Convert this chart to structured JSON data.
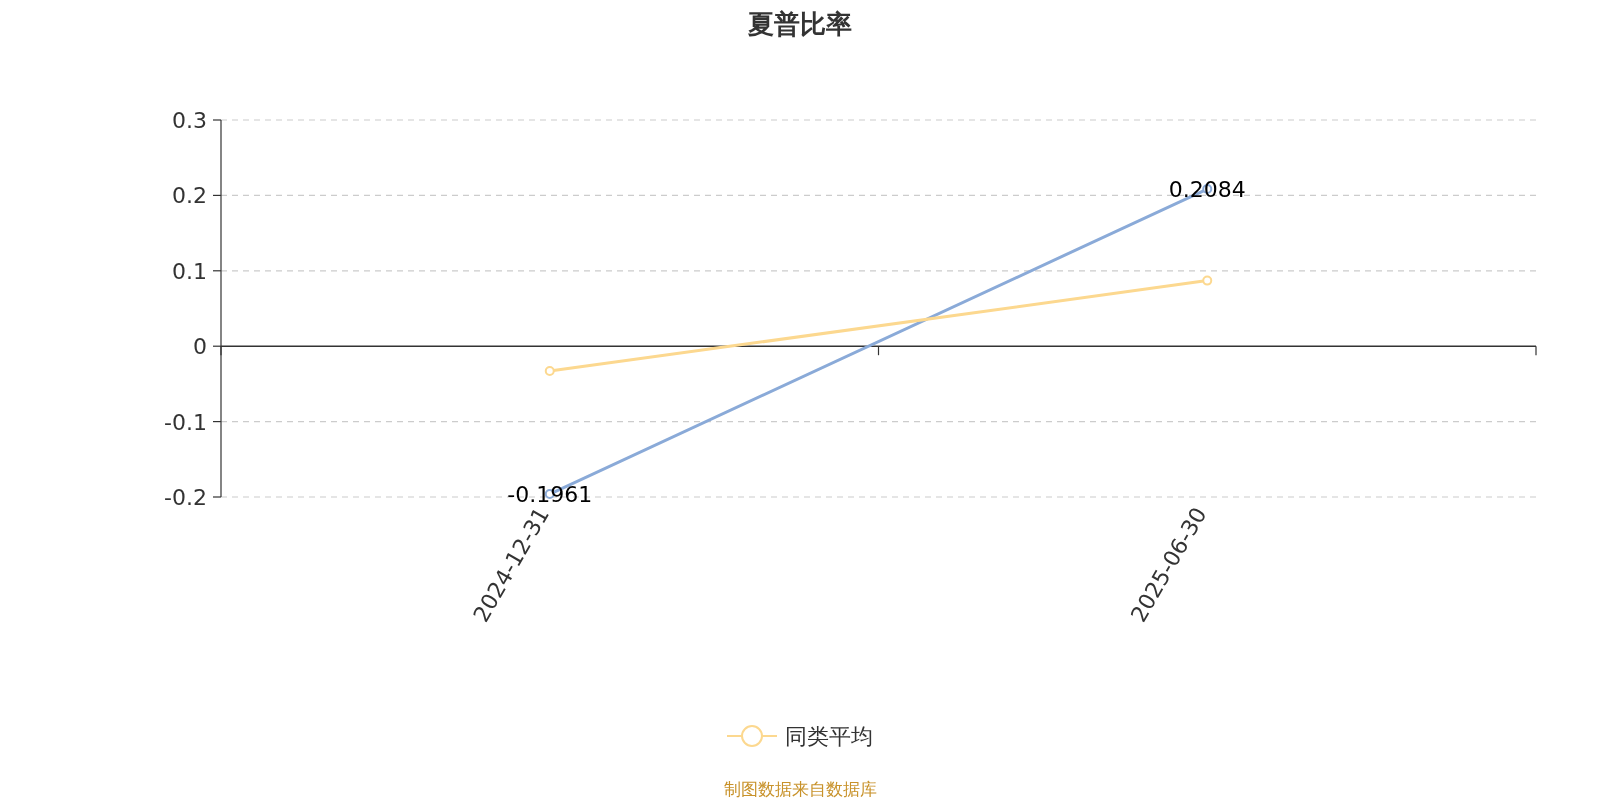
{
  "chart_data": {
    "type": "line",
    "title": "夏普比率",
    "categories": [
      "2024-12-31",
      "2025-06-30"
    ],
    "series": [
      {
        "color": "#8aaad8",
        "values": [
          -0.1961,
          0.2084
        ],
        "value_labels": [
          "-0.1961",
          "0.2084"
        ]
      },
      {
        "name": "同类平均",
        "color": "#fcd88f",
        "values": [
          -0.033,
          0.087
        ]
      }
    ],
    "ylim": [
      -0.2,
      0.3
    ],
    "yticks": [
      -0.2,
      -0.1,
      0,
      0.1,
      0.2,
      0.3
    ],
    "grid": "y",
    "legend": "bottom",
    "marker": "circle",
    "line_style": "solid",
    "annotations": [
      "制图数据来自数据库"
    ]
  }
}
